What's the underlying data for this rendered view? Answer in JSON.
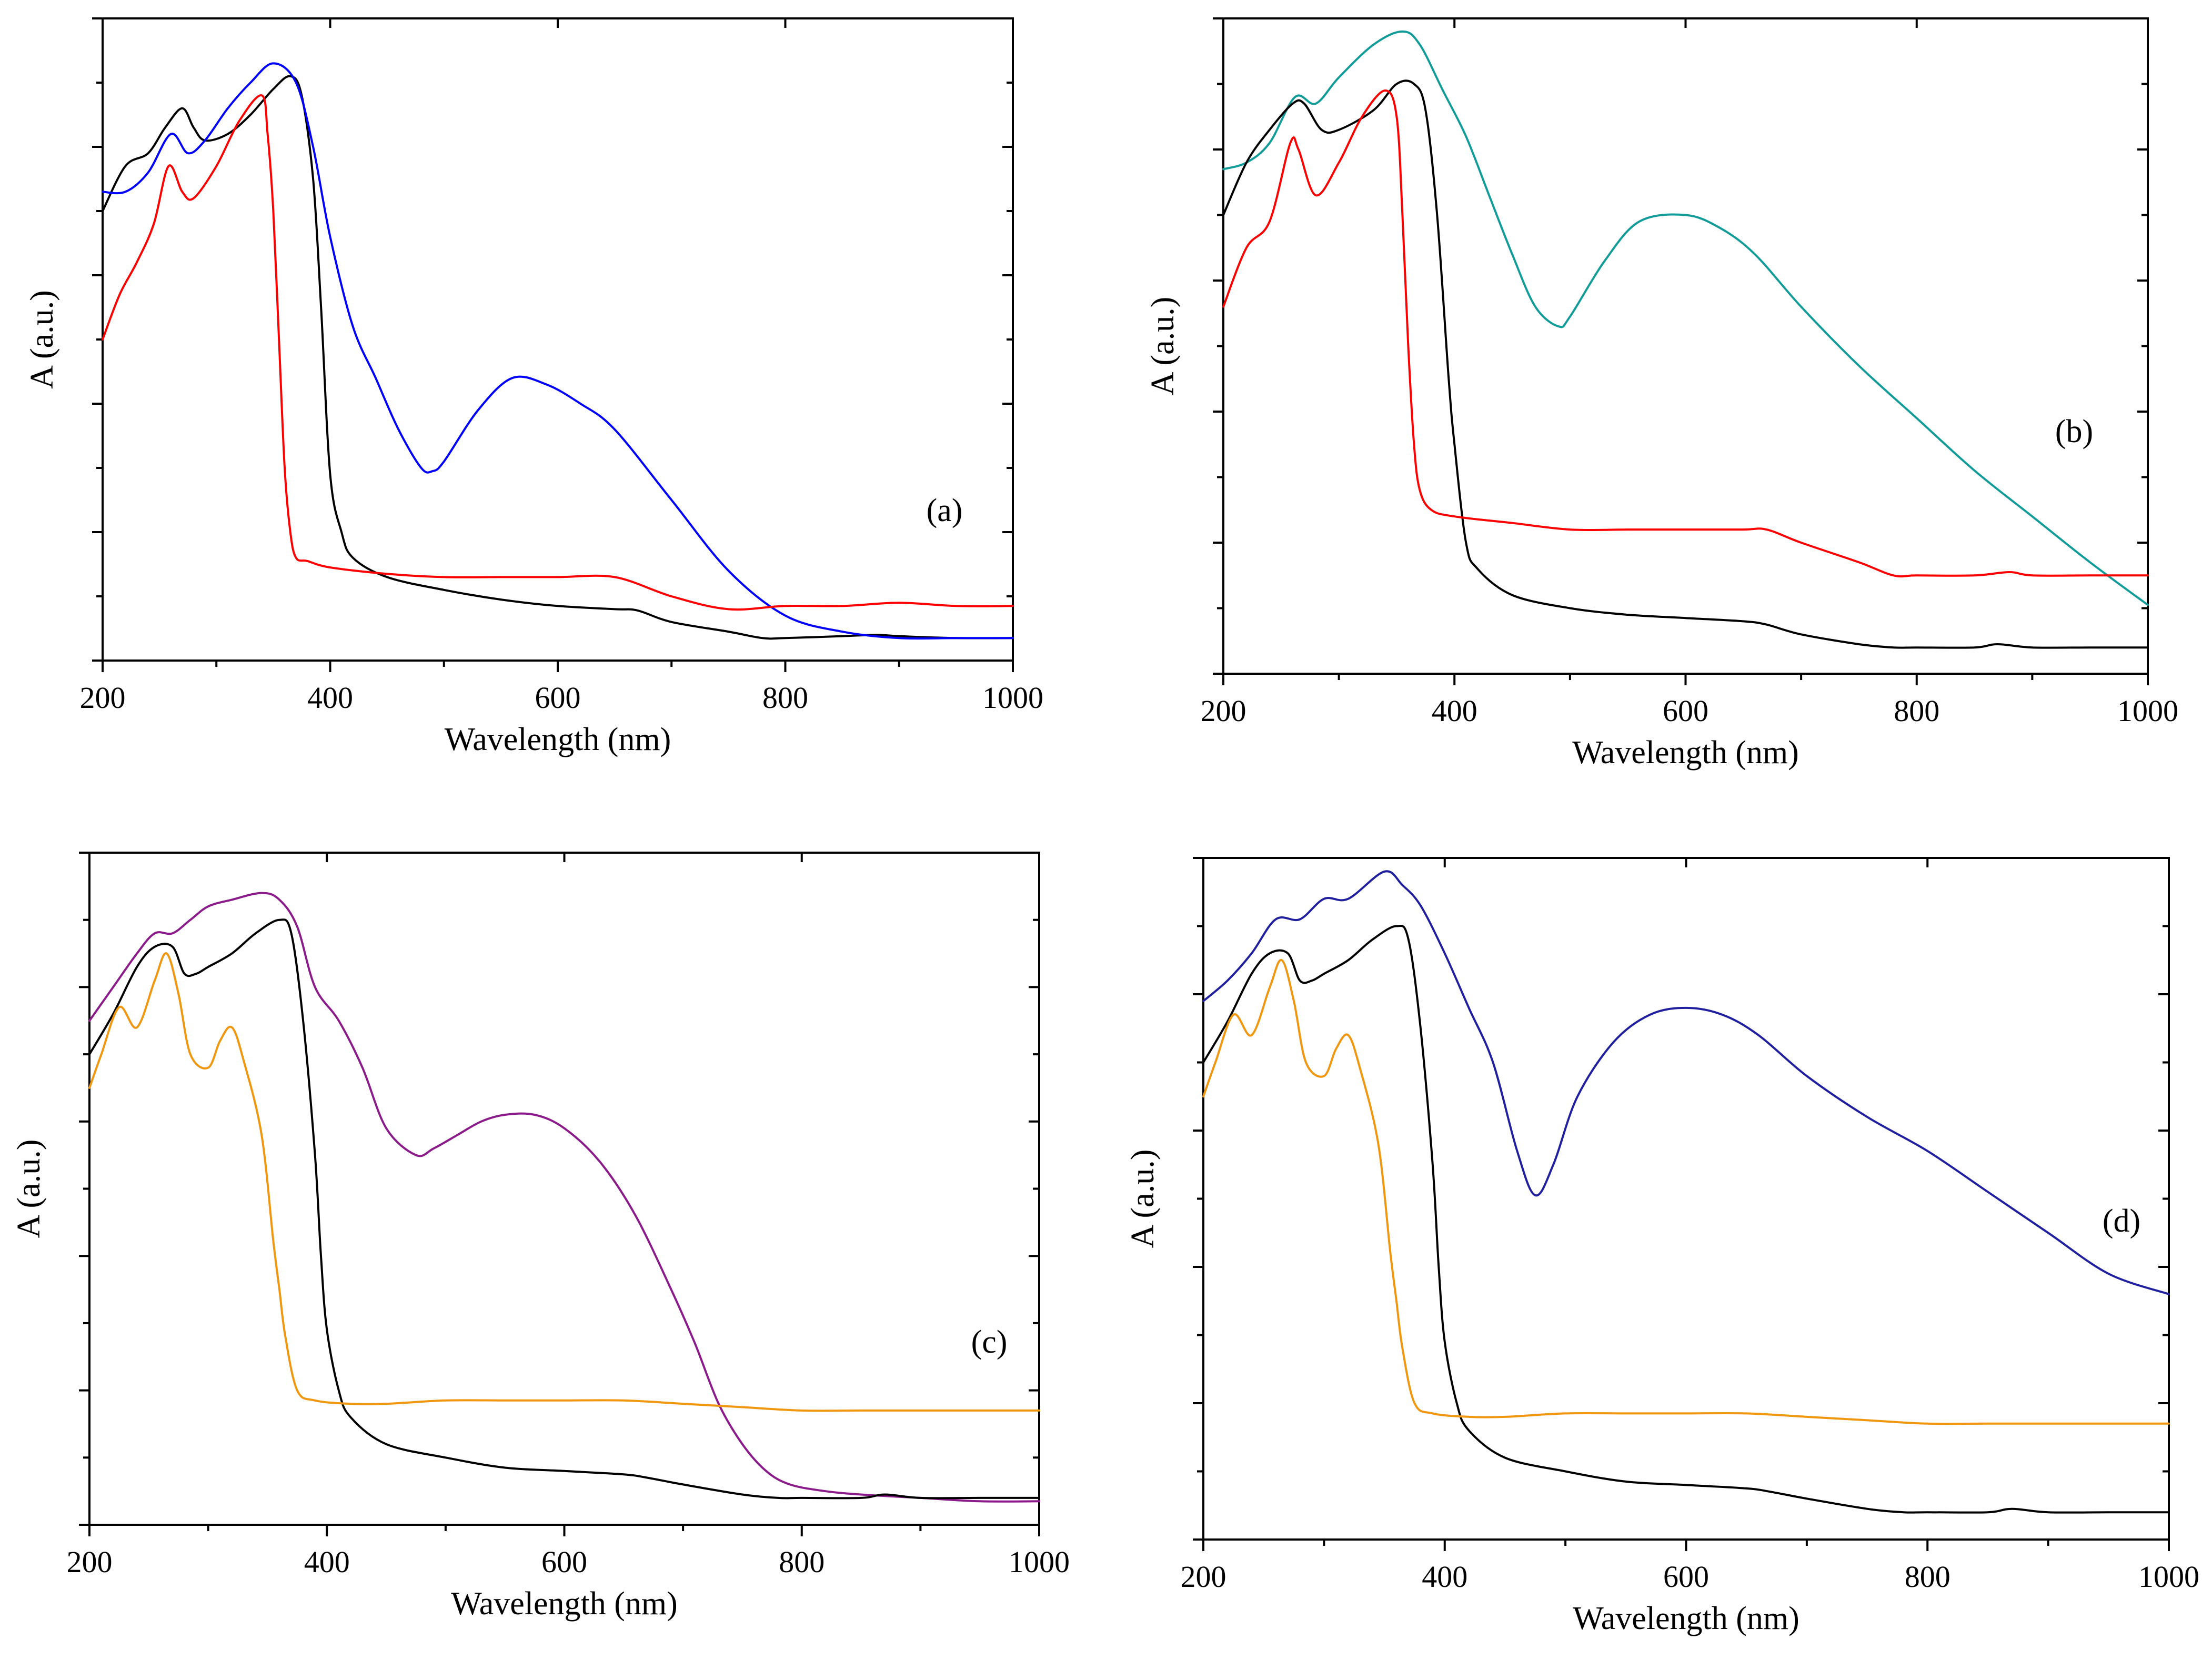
{
  "chart_data": [
    {
      "type": "line",
      "panel_label": "(a)",
      "xlabel": "Wavelength (nm)",
      "ylabel": "A (a.u.)",
      "xlim": [
        200,
        1000
      ],
      "ylim": [
        0,
        10
      ],
      "xticks": [
        200,
        400,
        600,
        800,
        1000
      ],
      "xtick_labels": [
        "200",
        "400",
        "600",
        "800",
        "1000"
      ],
      "yticks_minor": [
        0,
        1,
        2,
        3,
        4,
        5,
        6,
        7,
        8,
        9,
        10
      ],
      "ytick_labels": [],
      "grid": false,
      "series": [
        {
          "name": "black",
          "color": "#000000",
          "x": [
            200,
            220,
            240,
            255,
            270,
            280,
            290,
            310,
            330,
            350,
            365,
            375,
            385,
            392,
            400,
            410,
            420,
            450,
            500,
            550,
            600,
            650,
            670,
            700,
            750,
            780,
            800,
            850,
            880,
            900,
            950,
            1000
          ],
          "y": [
            7.0,
            7.7,
            7.9,
            8.3,
            8.6,
            8.3,
            8.1,
            8.2,
            8.5,
            8.9,
            9.1,
            8.8,
            7.5,
            5.5,
            2.9,
            2.0,
            1.6,
            1.3,
            1.1,
            0.95,
            0.85,
            0.8,
            0.78,
            0.6,
            0.45,
            0.35,
            0.35,
            0.38,
            0.4,
            0.38,
            0.35,
            0.35
          ]
        },
        {
          "name": "blue",
          "color": "#0000ff",
          "x": [
            200,
            220,
            240,
            260,
            275,
            290,
            310,
            330,
            350,
            370,
            385,
            400,
            420,
            440,
            460,
            480,
            490,
            500,
            530,
            560,
            590,
            620,
            650,
            700,
            750,
            800,
            850,
            900,
            950,
            1000
          ],
          "y": [
            7.3,
            7.3,
            7.6,
            8.2,
            7.9,
            8.1,
            8.6,
            9.0,
            9.3,
            9.0,
            8.0,
            6.6,
            5.2,
            4.4,
            3.6,
            3.0,
            2.95,
            3.1,
            3.9,
            4.4,
            4.3,
            4.0,
            3.6,
            2.5,
            1.4,
            0.7,
            0.45,
            0.35,
            0.35,
            0.35
          ]
        },
        {
          "name": "red",
          "color": "#ff0000",
          "x": [
            200,
            215,
            230,
            245,
            258,
            270,
            280,
            300,
            320,
            340,
            345,
            350,
            355,
            360,
            365,
            370,
            380,
            400,
            450,
            500,
            550,
            600,
            650,
            700,
            750,
            800,
            850,
            900,
            950,
            1000
          ],
          "y": [
            5.0,
            5.7,
            6.2,
            6.8,
            7.7,
            7.3,
            7.2,
            7.7,
            8.4,
            8.8,
            8.2,
            7.0,
            5.0,
            3.0,
            2.0,
            1.6,
            1.55,
            1.45,
            1.35,
            1.3,
            1.3,
            1.3,
            1.3,
            1.0,
            0.8,
            0.85,
            0.85,
            0.9,
            0.85,
            0.85
          ]
        }
      ]
    },
    {
      "type": "line",
      "panel_label": "(b)",
      "xlabel": "Wavelength (nm)",
      "ylabel": "A (a.u.)",
      "xlim": [
        200,
        1000
      ],
      "ylim": [
        0,
        10
      ],
      "xticks": [
        200,
        400,
        600,
        800,
        1000
      ],
      "xtick_labels": [
        "200",
        "400",
        "600",
        "800",
        "1000"
      ],
      "yticks_minor": [
        0,
        1,
        2,
        3,
        4,
        5,
        6,
        7,
        8,
        9,
        10
      ],
      "ytick_labels": [],
      "grid": false,
      "series": [
        {
          "name": "teal",
          "color": "#119c99",
          "x": [
            200,
            220,
            240,
            262,
            280,
            300,
            330,
            355,
            370,
            390,
            410,
            430,
            450,
            470,
            490,
            500,
            530,
            560,
            600,
            630,
            660,
            700,
            750,
            800,
            850,
            900,
            950,
            1000
          ],
          "y": [
            7.7,
            7.8,
            8.1,
            8.8,
            8.7,
            9.1,
            9.6,
            9.8,
            9.6,
            8.9,
            8.2,
            7.3,
            6.4,
            5.6,
            5.3,
            5.45,
            6.3,
            6.9,
            7.0,
            6.8,
            6.4,
            5.6,
            4.7,
            3.9,
            3.1,
            2.4,
            1.7,
            1.05
          ]
        },
        {
          "name": "black",
          "color": "#000000",
          "x": [
            200,
            220,
            240,
            260,
            270,
            285,
            300,
            330,
            350,
            365,
            375,
            385,
            395,
            400,
            410,
            420,
            450,
            500,
            550,
            600,
            650,
            670,
            700,
            750,
            780,
            800,
            850,
            870,
            900,
            950,
            1000
          ],
          "y": [
            7.0,
            7.8,
            8.3,
            8.7,
            8.7,
            8.3,
            8.3,
            8.6,
            9.0,
            9.0,
            8.6,
            7.0,
            4.5,
            3.5,
            2.0,
            1.6,
            1.2,
            1.0,
            0.9,
            0.85,
            0.8,
            0.75,
            0.6,
            0.45,
            0.4,
            0.4,
            0.4,
            0.45,
            0.4,
            0.4,
            0.4
          ]
        },
        {
          "name": "red",
          "color": "#ff0000",
          "x": [
            200,
            220,
            240,
            258,
            265,
            280,
            300,
            320,
            340,
            350,
            355,
            360,
            365,
            370,
            380,
            400,
            450,
            500,
            550,
            600,
            650,
            670,
            700,
            750,
            780,
            800,
            850,
            880,
            900,
            950,
            1000
          ],
          "y": [
            5.6,
            6.5,
            6.9,
            8.1,
            8.0,
            7.3,
            7.8,
            8.5,
            8.9,
            8.5,
            7.0,
            5.0,
            3.5,
            2.8,
            2.5,
            2.4,
            2.3,
            2.2,
            2.2,
            2.2,
            2.2,
            2.2,
            2.0,
            1.7,
            1.5,
            1.5,
            1.5,
            1.55,
            1.5,
            1.5,
            1.5
          ]
        }
      ]
    },
    {
      "type": "line",
      "panel_label": "(c)",
      "xlabel": "Wavelength (nm)",
      "ylabel": "A (a.u.)",
      "xlim": [
        200,
        1000
      ],
      "ylim": [
        0,
        10
      ],
      "xticks": [
        200,
        400,
        600,
        800,
        1000
      ],
      "xtick_labels": [
        "200",
        "400",
        "600",
        "800",
        "1000"
      ],
      "yticks_minor": [
        0,
        1,
        2,
        3,
        4,
        5,
        6,
        7,
        8,
        9,
        10
      ],
      "ytick_labels": [],
      "grid": false,
      "series": [
        {
          "name": "purple",
          "color": "#8b1a8b",
          "x": [
            200,
            220,
            240,
            255,
            270,
            285,
            300,
            320,
            345,
            360,
            375,
            390,
            410,
            430,
            450,
            475,
            490,
            510,
            530,
            550,
            575,
            600,
            630,
            660,
            690,
            710,
            730,
            750,
            770,
            790,
            820,
            850,
            900,
            950,
            1000
          ],
          "y": [
            7.5,
            8.0,
            8.5,
            8.8,
            8.8,
            9.0,
            9.2,
            9.3,
            9.4,
            9.3,
            8.9,
            8.0,
            7.5,
            6.8,
            5.9,
            5.5,
            5.6,
            5.8,
            6.0,
            6.1,
            6.1,
            5.9,
            5.4,
            4.6,
            3.5,
            2.7,
            1.8,
            1.2,
            0.8,
            0.6,
            0.5,
            0.45,
            0.4,
            0.35,
            0.35
          ]
        },
        {
          "name": "black",
          "color": "#000000",
          "x": [
            200,
            220,
            240,
            255,
            270,
            280,
            290,
            300,
            320,
            340,
            360,
            370,
            380,
            390,
            395,
            400,
            410,
            420,
            450,
            500,
            550,
            600,
            650,
            670,
            700,
            750,
            780,
            800,
            850,
            870,
            900,
            950,
            1000
          ],
          "y": [
            7.0,
            7.6,
            8.3,
            8.6,
            8.6,
            8.2,
            8.2,
            8.3,
            8.5,
            8.8,
            9.0,
            8.8,
            7.5,
            5.5,
            4.0,
            2.9,
            2.0,
            1.6,
            1.2,
            1.0,
            0.85,
            0.8,
            0.75,
            0.7,
            0.6,
            0.45,
            0.4,
            0.4,
            0.4,
            0.45,
            0.4,
            0.4,
            0.4
          ]
        },
        {
          "name": "orange",
          "color": "#f0960f",
          "x": [
            200,
            210,
            225,
            240,
            255,
            265,
            275,
            285,
            300,
            310,
            320,
            330,
            345,
            355,
            360,
            365,
            375,
            390,
            420,
            450,
            500,
            550,
            600,
            650,
            700,
            750,
            800,
            850,
            900,
            950,
            1000
          ],
          "y": [
            6.5,
            7.0,
            7.7,
            7.4,
            8.1,
            8.5,
            7.9,
            7.0,
            6.8,
            7.2,
            7.4,
            6.9,
            5.8,
            4.2,
            3.5,
            2.8,
            2.0,
            1.85,
            1.8,
            1.8,
            1.85,
            1.85,
            1.85,
            1.85,
            1.8,
            1.75,
            1.7,
            1.7,
            1.7,
            1.7,
            1.7
          ]
        }
      ]
    },
    {
      "type": "line",
      "panel_label": "(d)",
      "xlabel": "Wavelength (nm)",
      "ylabel": "A (a.u.)",
      "xlim": [
        200,
        1000
      ],
      "ylim": [
        0,
        10
      ],
      "xticks": [
        200,
        400,
        600,
        800,
        1000
      ],
      "xtick_labels": [
        "200",
        "400",
        "600",
        "800",
        "1000"
      ],
      "yticks_minor": [
        0,
        1,
        2,
        3,
        4,
        5,
        6,
        7,
        8,
        9,
        10
      ],
      "ytick_labels": [],
      "grid": false,
      "series": [
        {
          "name": "navy",
          "color": "#1f1fa0",
          "x": [
            200,
            220,
            240,
            260,
            280,
            300,
            320,
            350,
            365,
            380,
            400,
            420,
            440,
            460,
            475,
            490,
            510,
            540,
            570,
            600,
            630,
            660,
            700,
            750,
            800,
            850,
            900,
            950,
            1000
          ],
          "y": [
            7.9,
            8.2,
            8.6,
            9.1,
            9.1,
            9.4,
            9.4,
            9.8,
            9.6,
            9.3,
            8.6,
            7.8,
            7.0,
            5.7,
            5.05,
            5.5,
            6.5,
            7.3,
            7.7,
            7.8,
            7.7,
            7.4,
            6.8,
            6.2,
            5.7,
            5.1,
            4.5,
            3.9,
            3.6
          ]
        },
        {
          "name": "black",
          "color": "#000000",
          "x": [
            200,
            220,
            240,
            255,
            270,
            280,
            290,
            300,
            320,
            340,
            360,
            370,
            380,
            390,
            395,
            400,
            410,
            420,
            450,
            500,
            550,
            600,
            650,
            670,
            700,
            750,
            780,
            800,
            850,
            870,
            900,
            950,
            1000
          ],
          "y": [
            7.0,
            7.6,
            8.3,
            8.6,
            8.6,
            8.2,
            8.2,
            8.3,
            8.5,
            8.8,
            9.0,
            8.8,
            7.5,
            5.5,
            4.0,
            2.9,
            2.0,
            1.6,
            1.2,
            1.0,
            0.85,
            0.8,
            0.75,
            0.7,
            0.6,
            0.45,
            0.4,
            0.4,
            0.4,
            0.45,
            0.4,
            0.4,
            0.4
          ]
        },
        {
          "name": "orange",
          "color": "#f0960f",
          "x": [
            200,
            210,
            225,
            240,
            255,
            265,
            275,
            285,
            300,
            310,
            320,
            330,
            345,
            355,
            360,
            365,
            375,
            390,
            420,
            450,
            500,
            550,
            600,
            650,
            700,
            750,
            800,
            850,
            900,
            950,
            1000
          ],
          "y": [
            6.5,
            7.0,
            7.7,
            7.4,
            8.1,
            8.5,
            7.9,
            7.0,
            6.8,
            7.2,
            7.4,
            6.9,
            5.8,
            4.2,
            3.5,
            2.8,
            2.0,
            1.85,
            1.8,
            1.8,
            1.85,
            1.85,
            1.85,
            1.85,
            1.8,
            1.75,
            1.7,
            1.7,
            1.7,
            1.7,
            1.7
          ]
        }
      ]
    }
  ]
}
